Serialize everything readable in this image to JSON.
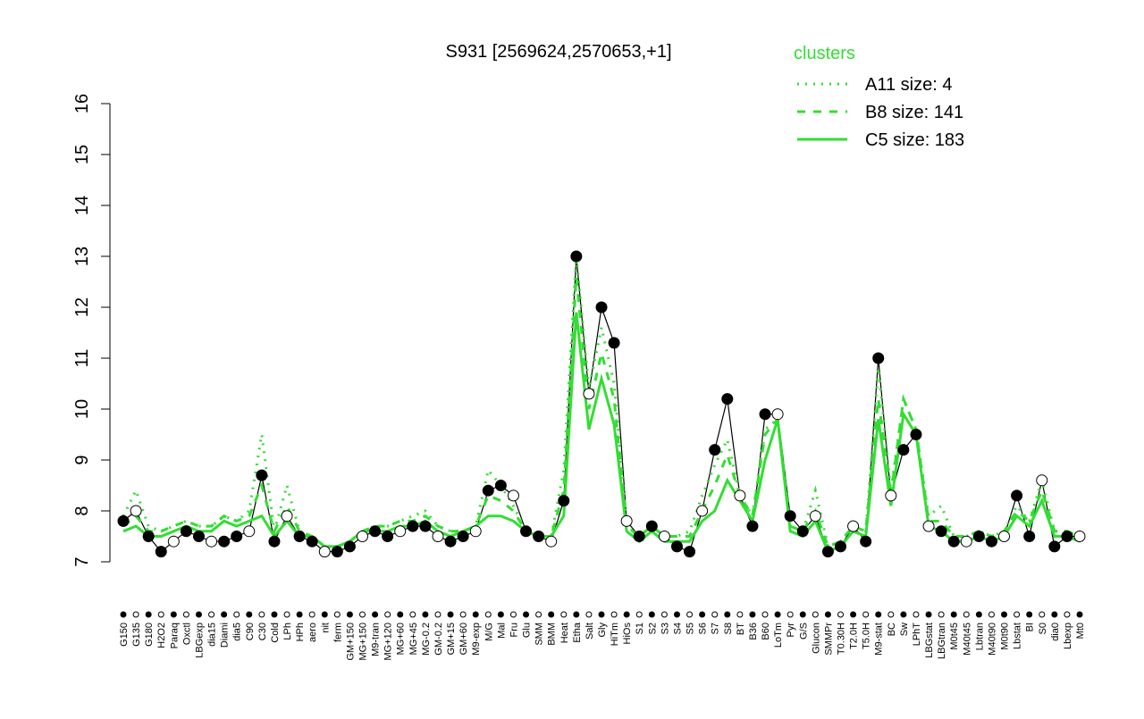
{
  "chart_data": {
    "type": "line",
    "title": "S931 [2569624,2570653,+1]",
    "categories": [
      "G150",
      "G135",
      "G180",
      "H2O2",
      "Paraq",
      "Oxctl",
      "LBGexp",
      "dia15",
      "Diami",
      "dia5",
      "C90",
      "C30",
      "Cold",
      "LPh",
      "HPh",
      "aero",
      "nit",
      "ferm",
      "GM+150",
      "MG+150",
      "M9-tran",
      "MG+120",
      "MG+60",
      "MG+45",
      "MG-0.2",
      "GM-0.2",
      "GM+15",
      "GM+60",
      "M9-exp",
      "M/G",
      "Mal",
      "Fru",
      "Glu",
      "SMM",
      "BMM",
      "Heat",
      "Etha",
      "Salt",
      "Gly",
      "HiTm",
      "HiOs",
      "S1",
      "S2",
      "S3",
      "S4",
      "S5",
      "S6",
      "S7",
      "S8",
      "BT",
      "B36",
      "B60",
      "LoTm",
      "Pyr",
      "G/S",
      "Glucon",
      "SMMPr",
      "T0.30H",
      "T2.0H",
      "T5.0H",
      "M9-stat",
      "BC",
      "Sw",
      "LPhT",
      "LBGstat",
      "LBGtran",
      "M0t45",
      "M40t45",
      "Lbtran",
      "M40t90",
      "M0t90",
      "Lbstat",
      "BI",
      "S0",
      "dia0",
      "Lbexp",
      "Mt0"
    ],
    "values": [
      7.8,
      8.0,
      7.5,
      7.2,
      7.4,
      7.6,
      7.5,
      7.4,
      7.4,
      7.5,
      7.6,
      8.7,
      7.4,
      7.9,
      7.5,
      7.4,
      7.2,
      7.2,
      7.3,
      7.5,
      7.6,
      7.5,
      7.6,
      7.7,
      7.7,
      7.5,
      7.4,
      7.5,
      7.6,
      8.4,
      8.5,
      8.3,
      7.6,
      7.5,
      7.4,
      8.2,
      13.0,
      10.3,
      12.0,
      11.3,
      7.8,
      7.5,
      7.7,
      7.5,
      7.3,
      7.2,
      8.0,
      9.2,
      10.2,
      8.3,
      7.7,
      9.9,
      9.9,
      7.9,
      7.6,
      7.9,
      7.2,
      7.3,
      7.7,
      7.4,
      11.0,
      8.3,
      9.2,
      9.5,
      7.7,
      7.6,
      7.4,
      7.4,
      7.5,
      7.4,
      7.5,
      8.3,
      7.5,
      8.6,
      7.3,
      7.5,
      7.5
    ],
    "series": [
      {
        "name": "A11 size: 4",
        "color": "#33dd33",
        "linestyle": "dotted",
        "values": [
          7.9,
          8.4,
          7.7,
          7.6,
          7.7,
          7.8,
          7.7,
          7.7,
          7.9,
          7.8,
          8.0,
          9.5,
          7.6,
          8.5,
          7.6,
          7.5,
          7.3,
          7.3,
          7.4,
          7.6,
          7.7,
          7.7,
          7.8,
          7.9,
          8.0,
          7.7,
          7.6,
          7.6,
          7.7,
          8.8,
          8.5,
          8.1,
          7.6,
          7.5,
          7.5,
          8.8,
          13.0,
          10.4,
          11.6,
          10.5,
          7.7,
          7.5,
          7.7,
          7.5,
          7.5,
          7.6,
          8.3,
          8.9,
          9.4,
          8.3,
          7.9,
          9.6,
          9.8,
          7.7,
          7.6,
          8.4,
          7.3,
          7.4,
          7.7,
          7.6,
          10.8,
          8.4,
          10.2,
          9.6,
          7.9,
          8.1,
          7.5,
          7.5,
          7.6,
          7.5,
          7.6,
          8.1,
          7.8,
          8.6,
          7.6,
          7.6,
          7.5
        ]
      },
      {
        "name": "B8 size: 141",
        "color": "#33dd33",
        "linestyle": "dashed",
        "values": [
          7.7,
          7.9,
          7.6,
          7.6,
          7.7,
          7.8,
          7.7,
          7.7,
          7.9,
          7.8,
          7.9,
          8.5,
          7.6,
          8.1,
          7.6,
          7.5,
          7.3,
          7.3,
          7.4,
          7.6,
          7.7,
          7.7,
          7.8,
          7.8,
          7.9,
          7.7,
          7.6,
          7.6,
          7.7,
          8.3,
          8.2,
          8.0,
          7.6,
          7.5,
          7.5,
          8.4,
          12.6,
          10.0,
          11.1,
          10.2,
          7.7,
          7.5,
          7.7,
          7.5,
          7.5,
          7.5,
          8.0,
          8.5,
          9.1,
          8.3,
          7.9,
          9.5,
          9.8,
          7.7,
          7.6,
          8.0,
          7.3,
          7.4,
          7.7,
          7.6,
          10.2,
          8.3,
          10.2,
          9.6,
          7.8,
          7.8,
          7.5,
          7.5,
          7.6,
          7.5,
          7.6,
          8.0,
          7.8,
          8.4,
          7.6,
          7.6,
          7.5
        ]
      },
      {
        "name": "C5 size: 183",
        "color": "#33dd33",
        "linestyle": "solid",
        "values": [
          7.6,
          7.7,
          7.5,
          7.5,
          7.6,
          7.7,
          7.6,
          7.6,
          7.8,
          7.7,
          7.8,
          7.9,
          7.5,
          7.8,
          7.5,
          7.5,
          7.3,
          7.3,
          7.4,
          7.6,
          7.6,
          7.6,
          7.7,
          7.7,
          7.8,
          7.6,
          7.5,
          7.6,
          7.7,
          7.9,
          7.9,
          7.8,
          7.6,
          7.5,
          7.5,
          7.9,
          11.9,
          9.6,
          10.6,
          9.7,
          7.6,
          7.4,
          7.6,
          7.4,
          7.4,
          7.4,
          7.8,
          8.0,
          8.6,
          8.2,
          7.8,
          9.0,
          9.8,
          7.6,
          7.5,
          7.8,
          7.2,
          7.3,
          7.6,
          7.5,
          9.8,
          8.1,
          9.9,
          9.5,
          7.7,
          7.6,
          7.4,
          7.4,
          7.5,
          7.4,
          7.5,
          7.9,
          7.7,
          8.2,
          7.5,
          7.5,
          7.4
        ]
      }
    ],
    "legend_title": "clusters",
    "ylim": [
      7,
      16
    ],
    "yticks": [
      7,
      8,
      9,
      10,
      11,
      12,
      13,
      14,
      15,
      16
    ]
  }
}
